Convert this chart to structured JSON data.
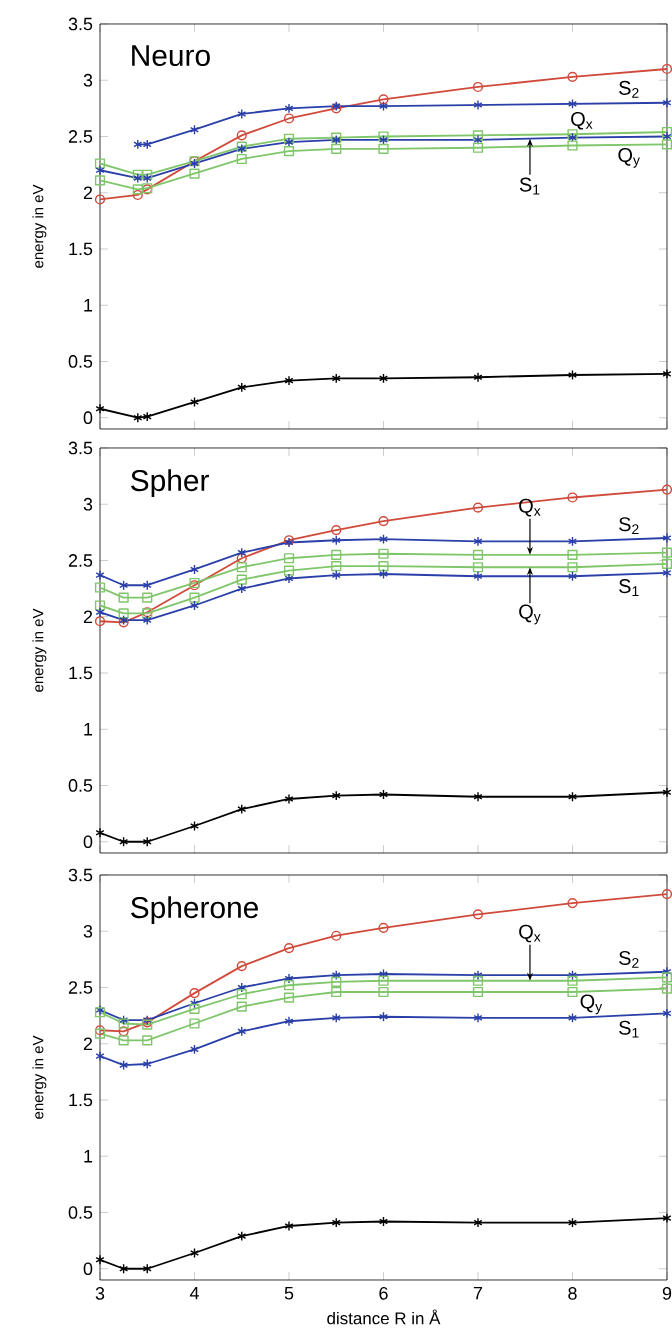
{
  "chart_data": [
    {
      "type": "line",
      "title": "Neuro",
      "ylabel": "energy in eV",
      "xlabel": null,
      "tick_labels": "y",
      "grid": false,
      "x": [
        3,
        3.4,
        3.5,
        4,
        4.5,
        5,
        5.5,
        6,
        7,
        8,
        9
      ],
      "xlim": [
        3,
        9
      ],
      "xticks": [
        3,
        4,
        5,
        6,
        7,
        8,
        9
      ],
      "ylim": [
        -0.1,
        3.5
      ],
      "yticks": [
        0,
        0.5,
        1,
        1.5,
        2,
        2.5,
        3,
        3.5
      ],
      "series": [
        {
          "color": "#d04a3c",
          "marker": "circle",
          "values": [
            1.94,
            1.98,
            2.03,
            2.28,
            2.51,
            2.66,
            2.75,
            2.83,
            2.94,
            3.03,
            3.1
          ]
        },
        {
          "color": "#2a3fa8",
          "marker": "cross",
          "values": [
            null,
            2.43,
            2.43,
            2.56,
            2.7,
            2.75,
            2.77,
            2.77,
            2.78,
            2.79,
            2.8
          ]
        },
        {
          "color": "#7fc66a",
          "marker": "square",
          "values": [
            2.26,
            2.16,
            2.16,
            2.28,
            2.41,
            2.48,
            2.49,
            2.5,
            2.51,
            2.52,
            2.54
          ]
        },
        {
          "color": "#2a3fa8",
          "marker": "cross",
          "values": [
            2.2,
            2.13,
            2.13,
            2.26,
            2.39,
            2.45,
            2.47,
            2.47,
            2.47,
            2.49,
            2.5
          ]
        },
        {
          "color": "#7fc66a",
          "marker": "square",
          "values": [
            2.11,
            2.03,
            2.04,
            2.17,
            2.3,
            2.37,
            2.39,
            2.39,
            2.4,
            2.42,
            2.43
          ]
        },
        {
          "color": "#000000",
          "marker": "cross",
          "values": [
            0.08,
            0.0,
            0.01,
            0.14,
            0.27,
            0.33,
            0.35,
            0.35,
            0.36,
            0.38,
            0.39
          ]
        }
      ],
      "annotations": [
        {
          "text": "S$_{2}$",
          "x": 8.6,
          "y": 2.8
        },
        {
          "text": "Q$_{x}$",
          "x": 8.1,
          "y": 2.52
        },
        {
          "text": "Q$_{y}$",
          "x": 8.6,
          "y": 2.43
        },
        {
          "text": "S$_{1}$",
          "x": 7.55,
          "y": 2.48
        }
      ]
    },
    {
      "type": "line",
      "title": "Spher",
      "ylabel": "energy in eV",
      "tick_labels": "y",
      "grid": false,
      "x": [
        3,
        3.25,
        3.5,
        4,
        4.5,
        5,
        5.5,
        6,
        7,
        8,
        9
      ],
      "xlim": [
        3,
        9
      ],
      "xticks": [
        3,
        4,
        5,
        6,
        7,
        8,
        9
      ],
      "ylim": [
        -0.1,
        3.5
      ],
      "yticks": [
        0,
        0.5,
        1,
        1.5,
        2,
        2.5,
        3,
        3.5
      ],
      "series": [
        {
          "color": "#d04a3c",
          "marker": "circle",
          "values": [
            1.96,
            1.95,
            2.04,
            2.28,
            2.52,
            2.68,
            2.77,
            2.85,
            2.97,
            3.06,
            3.13
          ]
        },
        {
          "color": "#2a3fa8",
          "marker": "cross",
          "values": [
            2.37,
            2.28,
            2.28,
            2.42,
            2.57,
            2.66,
            2.68,
            2.69,
            2.67,
            2.67,
            2.7
          ]
        },
        {
          "color": "#7fc66a",
          "marker": "square",
          "values": [
            2.26,
            2.17,
            2.17,
            2.3,
            2.44,
            2.52,
            2.55,
            2.56,
            2.55,
            2.55,
            2.57
          ]
        },
        {
          "color": "#7fc66a",
          "marker": "square",
          "values": [
            2.1,
            2.03,
            2.03,
            2.17,
            2.33,
            2.41,
            2.45,
            2.45,
            2.44,
            2.44,
            2.47
          ]
        },
        {
          "color": "#2a3fa8",
          "marker": "cross",
          "values": [
            2.04,
            1.97,
            1.97,
            2.1,
            2.25,
            2.34,
            2.37,
            2.38,
            2.36,
            2.36,
            2.39
          ]
        },
        {
          "color": "#000000",
          "marker": "cross",
          "values": [
            0.08,
            0.0,
            0.0,
            0.14,
            0.29,
            0.38,
            0.41,
            0.42,
            0.4,
            0.4,
            0.44
          ]
        }
      ],
      "annotations": [
        {
          "text": "Q$_{x}$",
          "x": 7.55,
          "y": 2.55
        },
        {
          "text": "S$_{2}$",
          "x": 8.6,
          "y": 2.69
        },
        {
          "text": "S$_{1}$",
          "x": 8.6,
          "y": 2.38
        },
        {
          "text": "Q$_{y}$",
          "x": 7.55,
          "y": 2.44
        }
      ]
    },
    {
      "type": "line",
      "title": "Spherone",
      "xlabel": "distance R in Å",
      "ylabel": "energy in eV",
      "grid": false,
      "x": [
        3,
        3.25,
        3.5,
        4,
        4.5,
        5,
        5.5,
        6,
        7,
        8,
        9
      ],
      "xlim": [
        3,
        9
      ],
      "xticks": [
        3,
        4,
        5,
        6,
        7,
        8,
        9
      ],
      "ylim": [
        -0.1,
        3.5
      ],
      "yticks": [
        0,
        0.5,
        1,
        1.5,
        2,
        2.5,
        3,
        3.5
      ],
      "series": [
        {
          "color": "#d04a3c",
          "marker": "circle",
          "values": [
            2.12,
            2.11,
            2.19,
            2.45,
            2.69,
            2.85,
            2.96,
            3.03,
            3.15,
            3.25,
            3.33
          ]
        },
        {
          "color": "#2a3fa8",
          "marker": "cross",
          "values": [
            2.3,
            2.21,
            2.21,
            2.36,
            2.5,
            2.58,
            2.61,
            2.62,
            2.61,
            2.61,
            2.64
          ]
        },
        {
          "color": "#7fc66a",
          "marker": "square",
          "values": [
            2.28,
            2.18,
            2.17,
            2.31,
            2.44,
            2.52,
            2.55,
            2.56,
            2.56,
            2.56,
            2.59
          ]
        },
        {
          "color": "#7fc66a",
          "marker": "square",
          "values": [
            2.09,
            2.03,
            2.03,
            2.18,
            2.33,
            2.41,
            2.46,
            2.46,
            2.46,
            2.46,
            2.49
          ]
        },
        {
          "color": "#2a3fa8",
          "marker": "cross",
          "values": [
            1.89,
            1.81,
            1.82,
            1.95,
            2.11,
            2.2,
            2.23,
            2.24,
            2.23,
            2.23,
            2.27
          ]
        },
        {
          "color": "#000000",
          "marker": "cross",
          "values": [
            0.08,
            0.0,
            0.0,
            0.14,
            0.29,
            0.38,
            0.41,
            0.42,
            0.41,
            0.41,
            0.45
          ]
        }
      ],
      "annotations": [
        {
          "text": "Q$_{x}$",
          "x": 7.55,
          "y": 2.56
        },
        {
          "text": "S$_{2}$",
          "x": 8.6,
          "y": 2.63
        },
        {
          "text": "Q$_{y}$",
          "x": 8.2,
          "y": 2.47
        },
        {
          "text": "S$_{1}$",
          "x": 8.6,
          "y": 2.25
        }
      ]
    }
  ]
}
